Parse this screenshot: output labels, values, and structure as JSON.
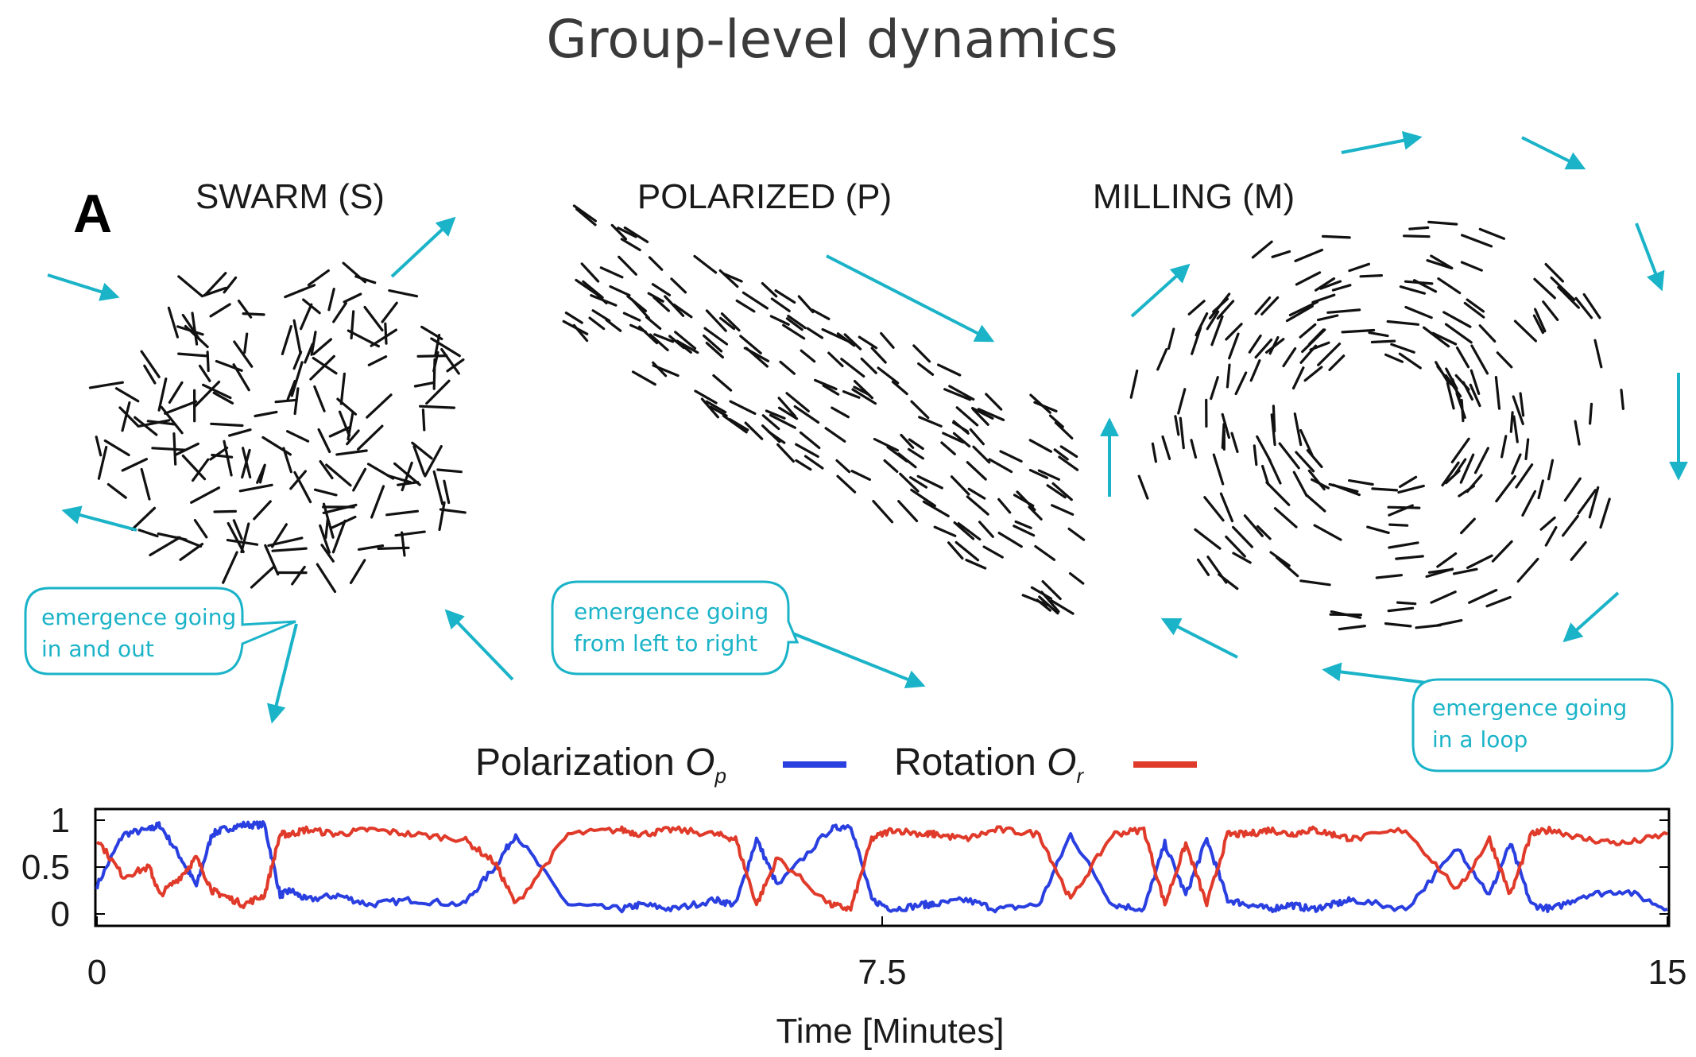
{
  "figure": {
    "title": "Group-level dynamics",
    "panel_letter": "A",
    "panels": [
      {
        "key": "swarm",
        "label": "SWARM (S)"
      },
      {
        "key": "polarized",
        "label": "POLARIZED (P)"
      },
      {
        "key": "milling",
        "label": "MILLING (M)"
      }
    ],
    "callouts": {
      "swarm": [
        "emergence going",
        "in and out"
      ],
      "polarized": [
        "emergence going",
        "from left to right"
      ],
      "milling": [
        "emergence going",
        "in a loop"
      ]
    }
  },
  "chart_data": {
    "type": "line",
    "xlabel": "Time [Minutes]",
    "xlim": [
      0,
      15
    ],
    "ylim": [
      0,
      1
    ],
    "xticks": [
      "0",
      "7.5",
      "15"
    ],
    "yticks": [
      "1",
      "0.5",
      "0"
    ],
    "legend": {
      "polarization_label": "Polarization",
      "polarization_symbol": "O",
      "polarization_subscript": "p",
      "rotation_label": "Rotation",
      "rotation_symbol": "O",
      "rotation_subscript": "r"
    },
    "series": [
      {
        "name": "Polarization",
        "color": "#2a3fe0",
        "x": [
          0,
          0.25,
          0.5,
          0.6,
          0.8,
          0.95,
          1.1,
          1.2,
          1.4,
          1.6,
          1.75,
          1.85,
          2.0,
          2.3,
          2.6,
          3.0,
          3.5,
          3.8,
          4.0,
          4.5,
          5.0,
          5.2,
          5.5,
          5.9,
          6.1,
          6.3,
          6.5,
          7.0,
          7.2,
          7.4,
          7.6,
          7.9,
          8.0,
          8.3,
          8.6,
          9.0,
          9.3,
          9.7,
          10.0,
          10.2,
          10.4,
          10.6,
          10.8,
          11.0,
          11.2,
          11.4,
          11.6,
          11.8,
          12.0,
          12.5,
          13.0,
          13.3,
          13.5,
          13.7,
          13.9,
          14.2,
          14.6,
          15.0
        ],
        "y": [
          0.3,
          0.85,
          0.9,
          0.95,
          0.6,
          0.3,
          0.85,
          0.9,
          0.95,
          0.95,
          0.2,
          0.25,
          0.15,
          0.2,
          0.1,
          0.15,
          0.1,
          0.5,
          0.85,
          0.1,
          0.05,
          0.1,
          0.05,
          0.15,
          0.1,
          0.8,
          0.3,
          0.9,
          0.95,
          0.15,
          0.05,
          0.1,
          0.1,
          0.15,
          0.05,
          0.1,
          0.85,
          0.1,
          0.05,
          0.75,
          0.2,
          0.8,
          0.15,
          0.1,
          0.05,
          0.1,
          0.05,
          0.1,
          0.15,
          0.05,
          0.7,
          0.2,
          0.75,
          0.1,
          0.05,
          0.2,
          0.25,
          0.05
        ]
      },
      {
        "name": "Rotation",
        "color": "#e03a2a",
        "x": [
          0,
          0.25,
          0.5,
          0.6,
          0.8,
          0.95,
          1.1,
          1.2,
          1.4,
          1.6,
          1.75,
          1.85,
          2.0,
          2.3,
          2.6,
          3.0,
          3.5,
          3.8,
          4.0,
          4.5,
          5.0,
          5.2,
          5.5,
          5.9,
          6.1,
          6.3,
          6.5,
          7.0,
          7.2,
          7.4,
          7.6,
          7.9,
          8.0,
          8.3,
          8.6,
          9.0,
          9.3,
          9.7,
          10.0,
          10.2,
          10.4,
          10.6,
          10.8,
          11.0,
          11.2,
          11.4,
          11.6,
          11.8,
          12.0,
          12.5,
          13.0,
          13.3,
          13.5,
          13.7,
          13.9,
          14.2,
          14.6,
          15.0
        ],
        "y": [
          0.8,
          0.4,
          0.5,
          0.2,
          0.4,
          0.6,
          0.25,
          0.2,
          0.1,
          0.2,
          0.85,
          0.85,
          0.9,
          0.85,
          0.9,
          0.85,
          0.8,
          0.55,
          0.1,
          0.85,
          0.9,
          0.85,
          0.9,
          0.85,
          0.8,
          0.1,
          0.6,
          0.1,
          0.05,
          0.8,
          0.9,
          0.85,
          0.85,
          0.8,
          0.9,
          0.85,
          0.15,
          0.85,
          0.9,
          0.1,
          0.75,
          0.1,
          0.85,
          0.85,
          0.9,
          0.85,
          0.9,
          0.85,
          0.8,
          0.9,
          0.25,
          0.8,
          0.2,
          0.85,
          0.9,
          0.8,
          0.75,
          0.85
        ]
      }
    ]
  }
}
